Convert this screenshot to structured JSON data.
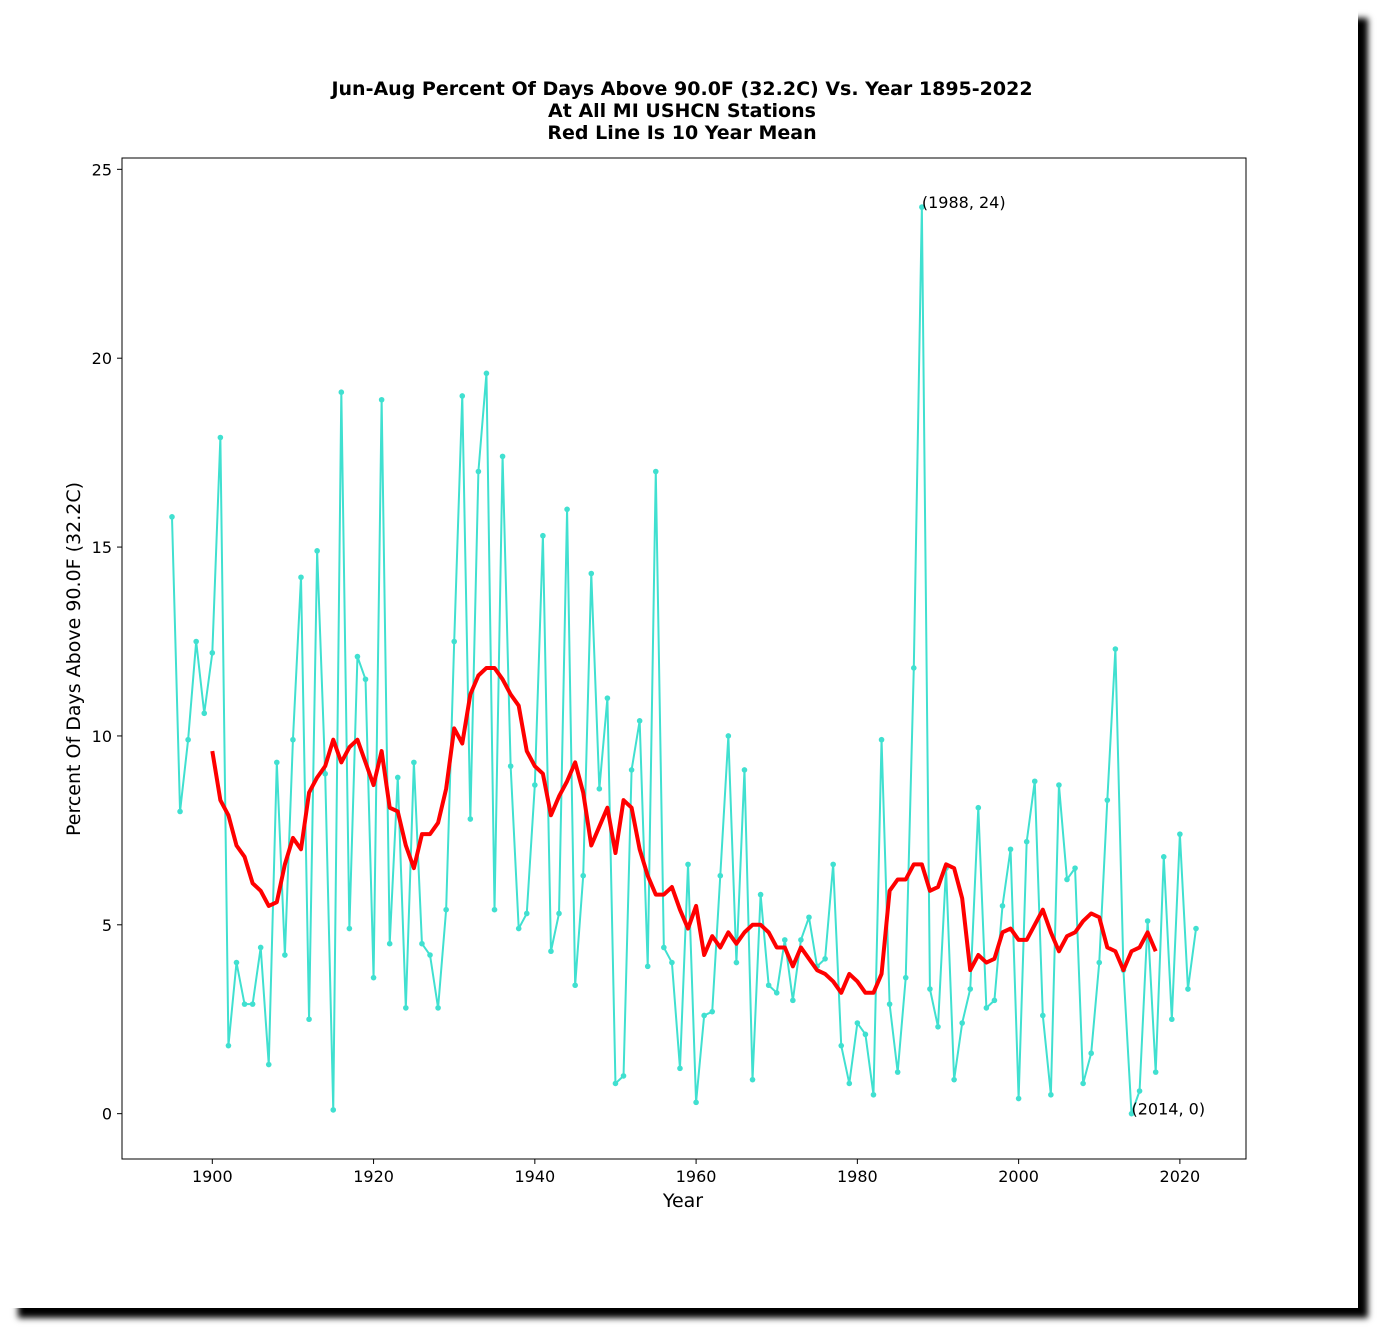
{
  "chart_data": {
    "type": "line",
    "title_lines": [
      "Jun-Aug Percent Of Days Above 90.0F (32.2C) Vs. Year 1895-2022",
      "At All MI USHCN Stations",
      "Red Line Is 10 Year Mean"
    ],
    "xlabel": "Year",
    "ylabel": "Percent Of Days Above 90.0F (32.2C)",
    "xlim": [
      1888.8,
      2028.2
    ],
    "ylim": [
      -1.2,
      25.3
    ],
    "xticks": [
      1900,
      1920,
      1940,
      1960,
      1980,
      2000,
      2020
    ],
    "yticks": [
      0,
      5,
      10,
      15,
      20,
      25
    ],
    "grid": false,
    "legend": "none",
    "colors": {
      "annual": "#40e0d0",
      "mean": "#ff0000"
    },
    "series": [
      {
        "color": "#40e0d0",
        "x": [
          1895,
          1896,
          1897,
          1898,
          1899,
          1900,
          1901,
          1902,
          1903,
          1904,
          1905,
          1906,
          1907,
          1908,
          1909,
          1910,
          1911,
          1912,
          1913,
          1914,
          1915,
          1916,
          1917,
          1918,
          1919,
          1920,
          1921,
          1922,
          1923,
          1924,
          1925,
          1926,
          1927,
          1928,
          1929,
          1930,
          1931,
          1932,
          1933,
          1934,
          1935,
          1936,
          1937,
          1938,
          1939,
          1940,
          1941,
          1942,
          1943,
          1944,
          1945,
          1946,
          1947,
          1948,
          1949,
          1950,
          1951,
          1952,
          1953,
          1954,
          1955,
          1956,
          1957,
          1958,
          1959,
          1960,
          1961,
          1962,
          1963,
          1964,
          1965,
          1966,
          1967,
          1968,
          1969,
          1970,
          1971,
          1972,
          1973,
          1974,
          1975,
          1976,
          1977,
          1978,
          1979,
          1980,
          1981,
          1982,
          1983,
          1984,
          1985,
          1986,
          1987,
          1988,
          1989,
          1990,
          1991,
          1992,
          1993,
          1994,
          1995,
          1996,
          1997,
          1998,
          1999,
          2000,
          2001,
          2002,
          2003,
          2004,
          2005,
          2006,
          2007,
          2008,
          2009,
          2010,
          2011,
          2012,
          2013,
          2014,
          2015,
          2016,
          2017,
          2018,
          2019,
          2020,
          2021,
          2022
        ],
        "y": [
          15.8,
          8.0,
          9.9,
          12.5,
          10.6,
          12.2,
          17.9,
          1.8,
          4.0,
          2.9,
          2.9,
          4.4,
          1.3,
          9.3,
          4.2,
          9.9,
          14.2,
          2.5,
          14.9,
          9.0,
          0.1,
          19.1,
          4.9,
          12.1,
          11.5,
          3.6,
          18.9,
          4.5,
          8.9,
          2.8,
          9.3,
          4.5,
          4.2,
          2.8,
          5.4,
          12.5,
          19.0,
          7.8,
          17.0,
          19.6,
          5.4,
          17.4,
          9.2,
          4.9,
          5.3,
          8.7,
          15.3,
          4.3,
          5.3,
          16.0,
          3.4,
          6.3,
          14.3,
          8.6,
          11.0,
          0.8,
          1.0,
          9.1,
          10.4,
          3.9,
          17.0,
          4.4,
          4.0,
          1.2,
          6.6,
          0.3,
          2.6,
          2.7,
          6.3,
          10.0,
          4.0,
          9.1,
          0.9,
          5.8,
          3.4,
          3.2,
          4.6,
          3.0,
          4.6,
          5.2,
          3.9,
          4.1,
          6.6,
          1.8,
          0.8,
          2.4,
          2.1,
          0.5,
          9.9,
          2.9,
          1.1,
          3.6,
          11.8,
          24.0,
          3.3,
          2.3,
          6.5,
          0.9,
          2.4,
          3.3,
          8.1,
          2.8,
          3.0,
          5.5,
          7.0,
          0.4,
          7.2,
          8.8,
          2.6,
          0.5,
          8.7,
          6.2,
          6.5,
          0.8,
          1.6,
          4.0,
          8.3,
          12.3,
          3.8,
          0.0,
          0.6,
          5.1,
          1.1,
          6.8,
          2.5,
          7.4,
          3.3,
          4.9
        ]
      },
      {
        "color": "#ff0000",
        "x": [
          1900,
          1901,
          1902,
          1903,
          1904,
          1905,
          1906,
          1907,
          1908,
          1909,
          1910,
          1911,
          1912,
          1913,
          1914,
          1915,
          1916,
          1917,
          1918,
          1919,
          1920,
          1921,
          1922,
          1923,
          1924,
          1925,
          1926,
          1927,
          1928,
          1929,
          1930,
          1931,
          1932,
          1933,
          1934,
          1935,
          1936,
          1937,
          1938,
          1939,
          1940,
          1941,
          1942,
          1943,
          1944,
          1945,
          1946,
          1947,
          1948,
          1949,
          1950,
          1951,
          1952,
          1953,
          1954,
          1955,
          1956,
          1957,
          1958,
          1959,
          1960,
          1961,
          1962,
          1963,
          1964,
          1965,
          1966,
          1967,
          1968,
          1969,
          1970,
          1971,
          1972,
          1973,
          1974,
          1975,
          1976,
          1977,
          1978,
          1979,
          1980,
          1981,
          1982,
          1983,
          1984,
          1985,
          1986,
          1987,
          1988,
          1989,
          1990,
          1991,
          1992,
          1993,
          1994,
          1995,
          1996,
          1997,
          1998,
          1999,
          2000,
          2001,
          2002,
          2003,
          2004,
          2005,
          2006,
          2007,
          2008,
          2009,
          2010,
          2011,
          2012,
          2013,
          2014,
          2015,
          2016,
          2017
        ],
        "y": [
          9.6,
          8.3,
          7.9,
          7.1,
          6.8,
          6.1,
          5.9,
          5.5,
          5.6,
          6.6,
          7.3,
          7.0,
          8.5,
          8.9,
          9.2,
          9.9,
          9.3,
          9.7,
          9.9,
          9.3,
          8.7,
          9.6,
          8.1,
          8.0,
          7.1,
          6.5,
          7.4,
          7.4,
          7.7,
          8.6,
          10.2,
          9.8,
          11.1,
          11.6,
          11.8,
          11.8,
          11.5,
          11.1,
          10.8,
          9.6,
          9.2,
          9.0,
          7.9,
          8.4,
          8.8,
          9.3,
          8.5,
          7.1,
          7.6,
          8.1,
          6.9,
          8.3,
          8.1,
          7.0,
          6.3,
          5.8,
          5.8,
          6.0,
          5.4,
          4.9,
          5.5,
          4.2,
          4.7,
          4.4,
          4.8,
          4.5,
          4.8,
          5.0,
          5.0,
          4.8,
          4.4,
          4.4,
          3.9,
          4.4,
          4.1,
          3.8,
          3.7,
          3.5,
          3.2,
          3.7,
          3.5,
          3.2,
          3.2,
          3.7,
          5.9,
          6.2,
          6.2,
          6.6,
          6.6,
          5.9,
          6.0,
          6.6,
          6.5,
          5.7,
          3.8,
          4.2,
          4.0,
          4.1,
          4.8,
          4.9,
          4.6,
          4.6,
          5.0,
          5.4,
          4.8,
          4.3,
          4.7,
          4.8,
          5.1,
          5.3,
          5.2,
          4.4,
          4.3,
          3.8,
          4.3,
          4.4,
          4.8,
          4.3
        ]
      }
    ],
    "annotations": [
      {
        "x": 1988,
        "y": 24,
        "text": "(1988, 24)"
      },
      {
        "x": 2014,
        "y": 0,
        "text": "(2014, 0)"
      }
    ]
  }
}
